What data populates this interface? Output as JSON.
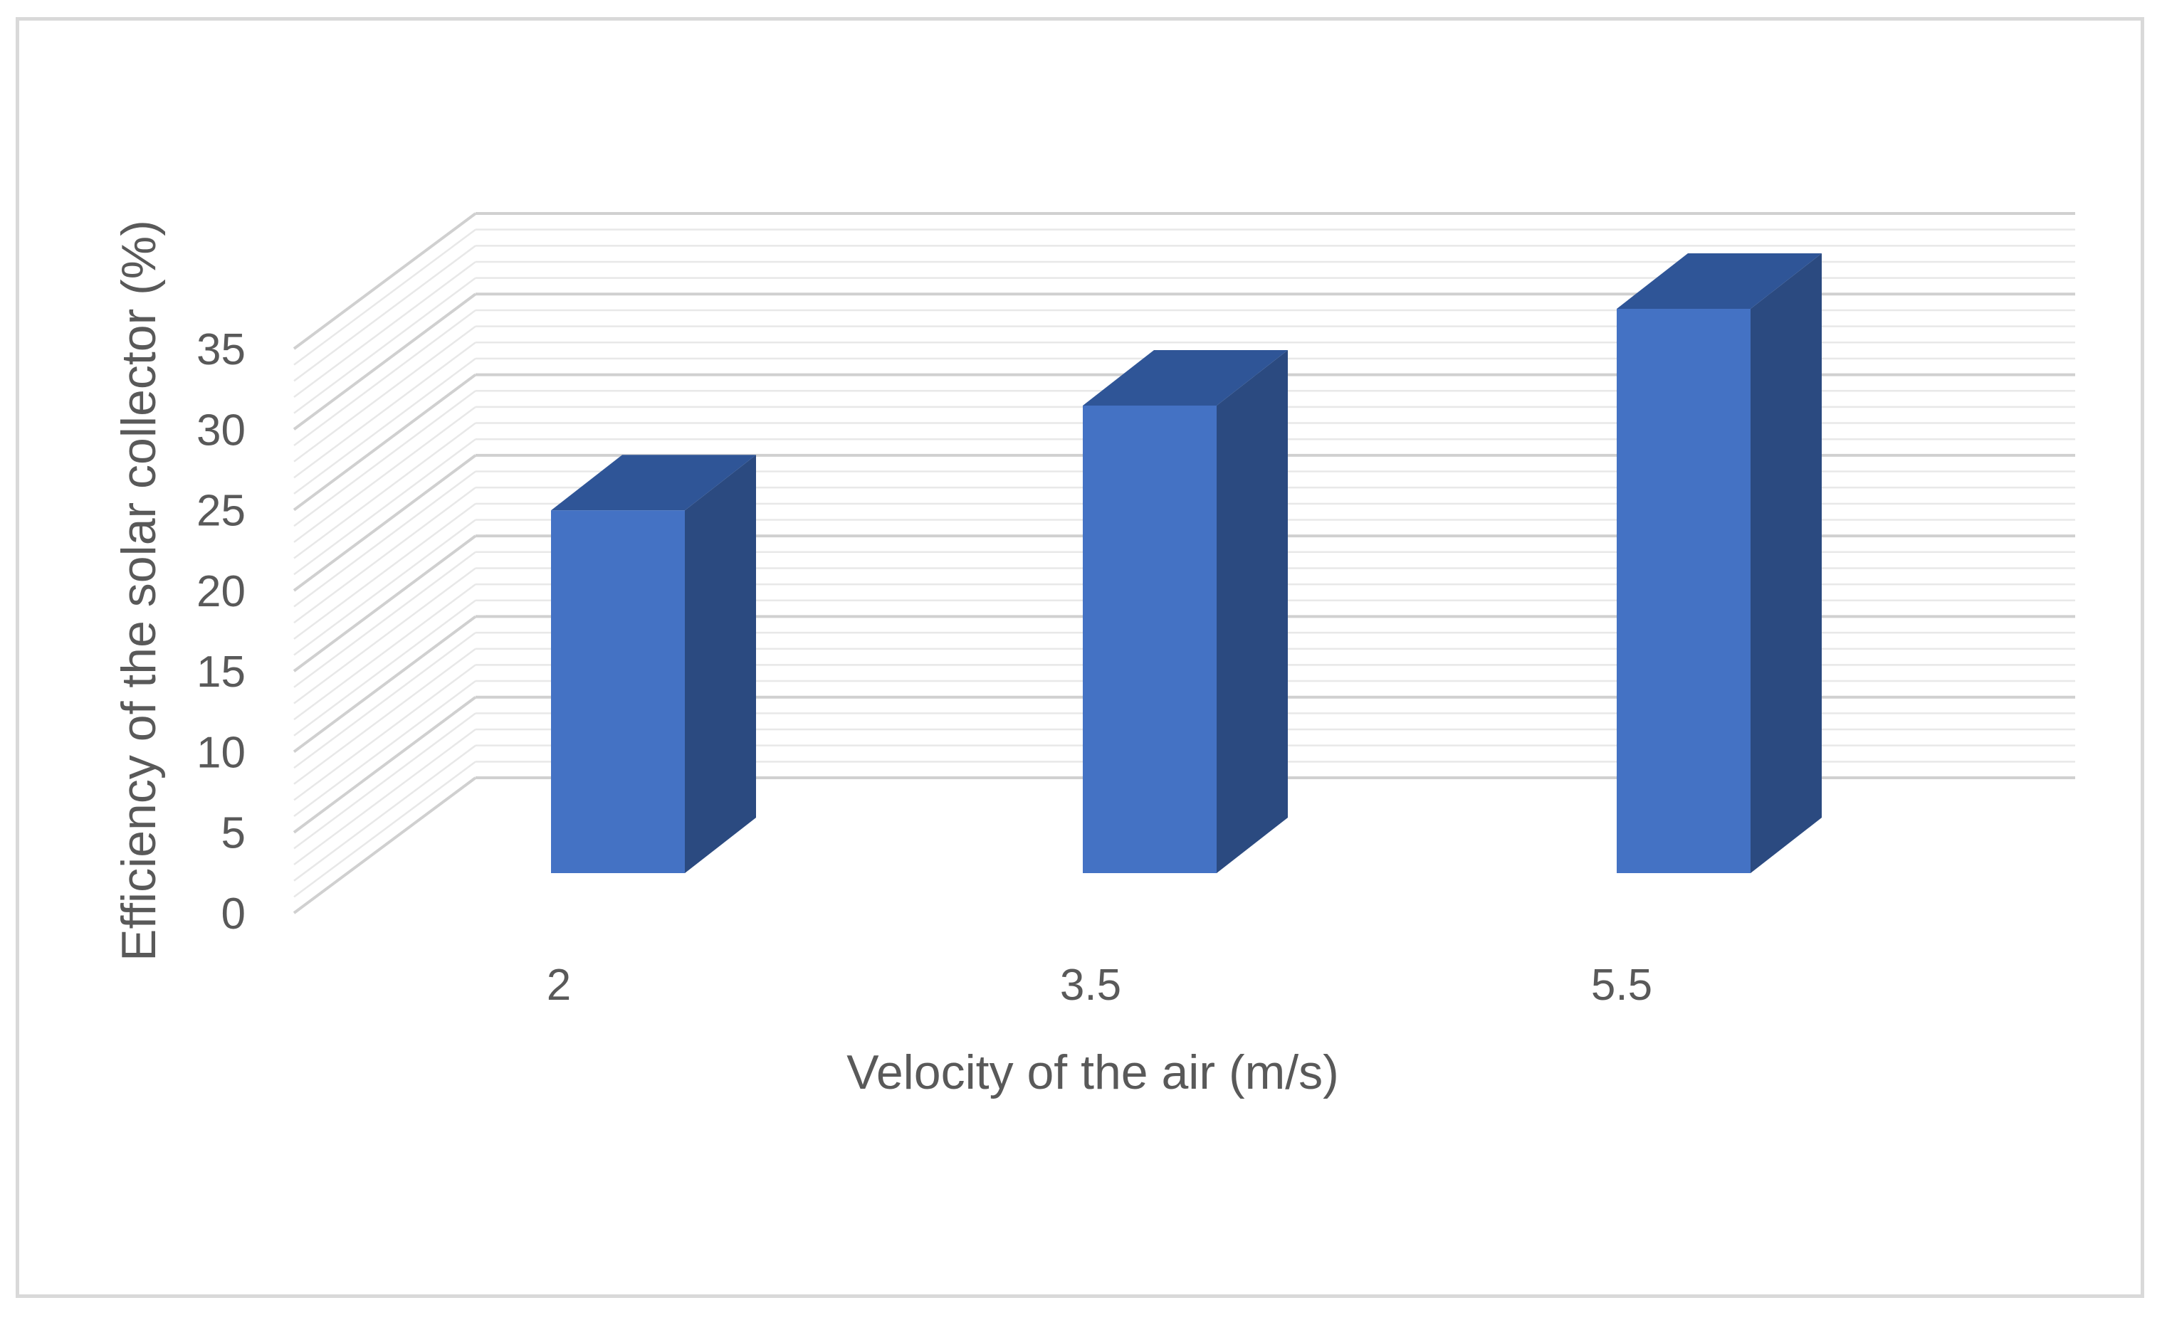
{
  "chart_data": {
    "type": "bar",
    "style": "3d-column",
    "categories": [
      "2",
      "3.5",
      "5.5"
    ],
    "values": [
      22.5,
      29,
      35
    ],
    "title": "",
    "xlabel": "Velocity of the air (m/s)",
    "ylabel": "Efficiency of the solar collector (%)",
    "ylim": [
      0,
      35
    ],
    "yticks": [
      "0",
      "5",
      "10",
      "15",
      "20",
      "25",
      "30",
      "35"
    ],
    "grid": true,
    "legend": "none",
    "colors": {
      "bar_front": "#4472c4",
      "bar_top": "#2f5597",
      "bar_side": "#2b4a80",
      "grid": "#d9d9d9",
      "text": "#595959"
    }
  }
}
